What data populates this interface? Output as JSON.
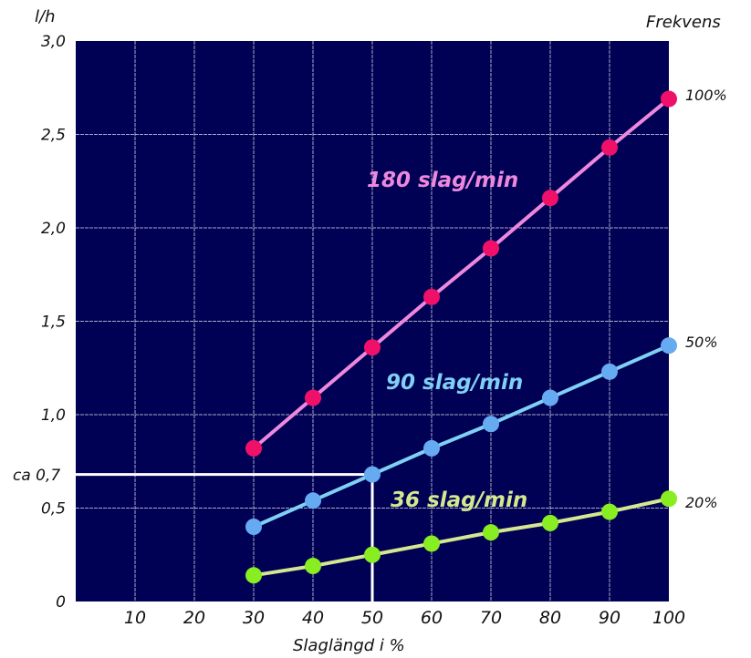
{
  "chart_data": {
    "type": "line",
    "ylabel": "l/h",
    "xlabel": "Slaglängd i %",
    "right_label": "Frekvens",
    "xlim": [
      0,
      100
    ],
    "ylim": [
      0,
      3.0
    ],
    "grid": true,
    "x_ticks": [
      "10",
      "20",
      "30",
      "40",
      "50",
      "60",
      "70",
      "80",
      "90",
      "100"
    ],
    "y_ticks": [
      "0",
      "0,5",
      "1,0",
      "1,5",
      "2,0",
      "2,5",
      "3,0"
    ],
    "x": [
      30,
      40,
      50,
      60,
      70,
      80,
      90,
      100
    ],
    "series": [
      {
        "name": "180 slag/min",
        "end_label": "100%",
        "color": "#ee88dd",
        "marker_color": "#f0106a",
        "values": [
          0.82,
          1.09,
          1.36,
          1.63,
          1.89,
          2.16,
          2.43,
          2.69
        ]
      },
      {
        "name": "90 slag/min",
        "end_label": "50%",
        "color": "#7fd0f2",
        "marker_color": "#66aaf2",
        "values": [
          0.4,
          0.54,
          0.68,
          0.82,
          0.95,
          1.09,
          1.23,
          1.37
        ]
      },
      {
        "name": "36 slag/min",
        "end_label": "20%",
        "color": "#d4e890",
        "marker_color": "#88ee22",
        "values": [
          0.14,
          0.19,
          0.25,
          0.31,
          0.37,
          0.42,
          0.48,
          0.55
        ]
      }
    ],
    "annotation": {
      "label": "ca 0,7",
      "x": 50,
      "y": 0.68,
      "color": "#ffffff"
    },
    "plot_background": "#000055"
  }
}
